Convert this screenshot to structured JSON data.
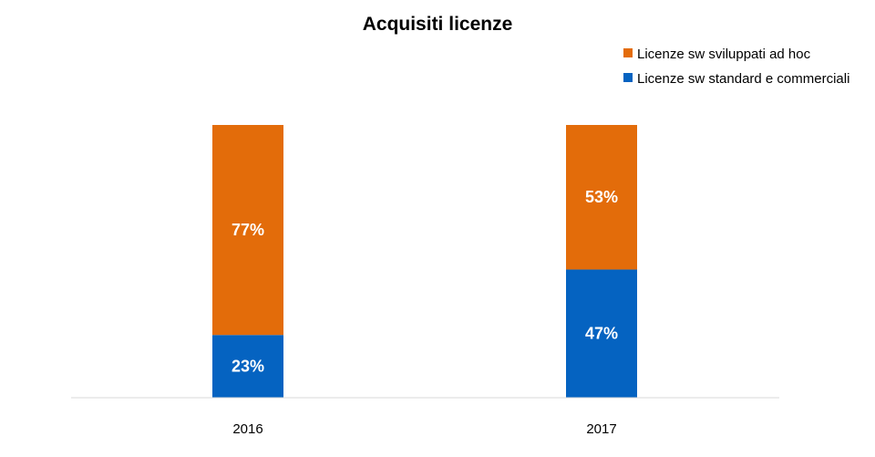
{
  "chart_data": {
    "type": "bar",
    "stacked": true,
    "title": "Acquisiti licenze",
    "categories": [
      "2016",
      "2017"
    ],
    "series": [
      {
        "name": "Licenze sw standard e commerciali",
        "values": [
          23,
          47
        ],
        "labels": [
          "23%",
          "47%"
        ],
        "color": "#0563c1"
      },
      {
        "name": "Licenze sw sviluppati ad hoc",
        "values": [
          77,
          53
        ],
        "labels": [
          "77%",
          "53%"
        ],
        "color": "#e36c0a"
      }
    ],
    "legend_order": [
      1,
      0
    ],
    "legend_position": "top-right",
    "ylim": [
      0,
      100
    ],
    "grid": false,
    "axis_color": "#d9d9d9"
  }
}
